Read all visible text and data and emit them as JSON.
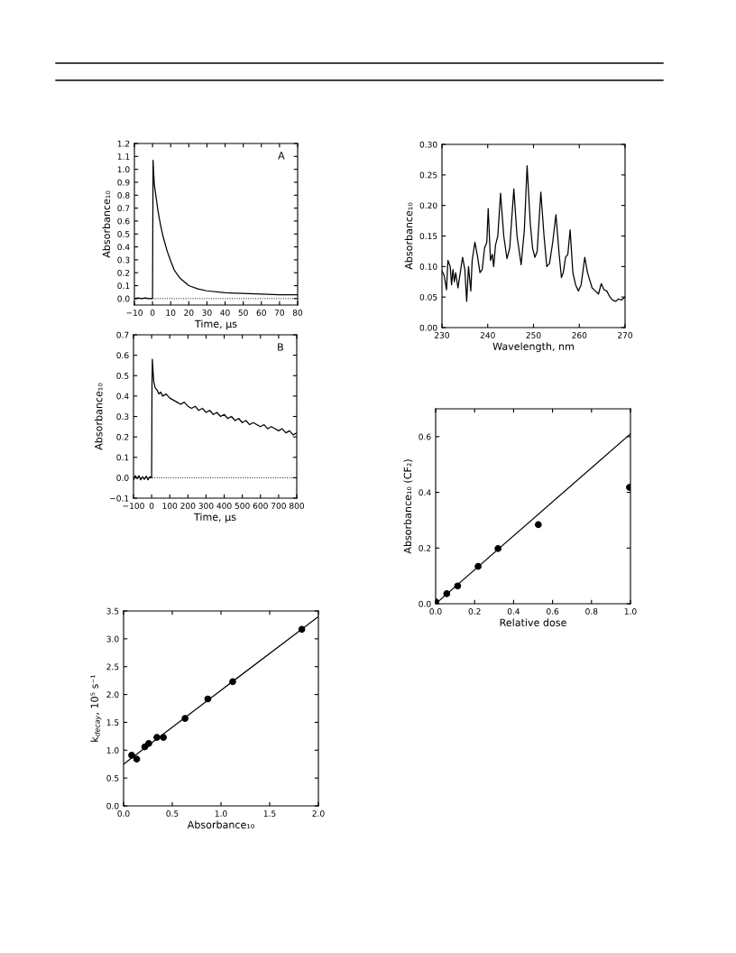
{
  "chart_data": [
    {
      "type": "line",
      "xlabel": "Time, μs",
      "ylabel": "Absorbance₁₀",
      "annotations": [
        "A"
      ],
      "xlim": [
        -10,
        80
      ],
      "xticks": [
        {
          "value": -10,
          "label": "−10"
        },
        0,
        10,
        20,
        30,
        40,
        50,
        60,
        70,
        80
      ],
      "ylim": [
        -0.05,
        1.2
      ],
      "yticks": [
        {
          "value": 0,
          "label": "0.0"
        },
        0.1,
        0.2,
        0.3,
        0.4,
        0.5,
        0.6,
        0.7,
        0.8,
        0.9,
        {
          "value": 1,
          "label": "1.0"
        },
        1.1,
        1.2
      ],
      "ref_lines": [
        {
          "axis": "y",
          "value": 0,
          "line_style": "dotted",
          "color": "#000000"
        }
      ],
      "series": [
        {
          "color": "#000000",
          "x": [
            -10,
            -8,
            -6,
            -4,
            -2,
            0,
            0.3,
            0.6,
            1,
            2,
            3,
            4,
            5,
            6,
            8,
            10,
            12,
            15,
            20,
            25,
            30,
            40,
            50,
            60,
            70,
            80
          ],
          "values": [
            0.0,
            0.005,
            0.0,
            0.005,
            0.0,
            0.0,
            1.07,
            0.98,
            0.88,
            0.78,
            0.68,
            0.6,
            0.53,
            0.47,
            0.37,
            0.29,
            0.22,
            0.16,
            0.1,
            0.075,
            0.06,
            0.045,
            0.04,
            0.035,
            0.03,
            0.03
          ]
        }
      ]
    },
    {
      "type": "line",
      "xlabel": "Time, μs",
      "ylabel": "Absorbance₁₀",
      "annotations": [
        "B"
      ],
      "xlim": [
        -100,
        800
      ],
      "xticks": [
        {
          "value": -100,
          "label": "−100"
        },
        0,
        100,
        200,
        300,
        400,
        500,
        600,
        700,
        800
      ],
      "ylim": [
        -0.1,
        0.7
      ],
      "yticks": [
        {
          "value": -0.1,
          "label": "−0.1"
        },
        {
          "value": 0,
          "label": "0.0"
        },
        0.1,
        0.2,
        0.3,
        0.4,
        0.5,
        0.6,
        0.7
      ],
      "ref_lines": [
        {
          "axis": "y",
          "value": 0,
          "line_style": "dotted",
          "color": "#000000"
        }
      ],
      "series": [
        {
          "color": "#000000",
          "x": [
            -100,
            -90,
            -80,
            -70,
            -60,
            -50,
            -40,
            -30,
            -20,
            -10,
            0,
            2,
            4,
            8,
            12,
            20,
            30,
            40,
            50,
            60,
            80,
            100,
            120,
            140,
            160,
            180,
            200,
            220,
            240,
            260,
            280,
            300,
            320,
            340,
            360,
            380,
            400,
            420,
            440,
            460,
            480,
            500,
            520,
            540,
            560,
            580,
            600,
            620,
            640,
            660,
            680,
            700,
            720,
            740,
            760,
            780,
            800
          ],
          "values": [
            -0.01,
            0.01,
            -0.005,
            0.01,
            -0.01,
            0.005,
            -0.008,
            0.008,
            -0.01,
            0.005,
            0.0,
            0.45,
            0.58,
            0.52,
            0.47,
            0.44,
            0.43,
            0.41,
            0.42,
            0.4,
            0.41,
            0.39,
            0.38,
            0.37,
            0.36,
            0.37,
            0.35,
            0.34,
            0.35,
            0.33,
            0.34,
            0.32,
            0.33,
            0.31,
            0.32,
            0.3,
            0.31,
            0.29,
            0.3,
            0.28,
            0.29,
            0.27,
            0.28,
            0.26,
            0.27,
            0.26,
            0.25,
            0.26,
            0.24,
            0.25,
            0.24,
            0.23,
            0.24,
            0.22,
            0.23,
            0.21,
            0.22
          ]
        }
      ]
    },
    {
      "type": "line",
      "xlabel": "Wavelength, nm",
      "ylabel": "Absorbance₁₀",
      "xlim": [
        230,
        270
      ],
      "xticks": [
        230,
        240,
        250,
        260,
        270
      ],
      "ylim": [
        0,
        0.3
      ],
      "yticks": [
        {
          "value": 0,
          "label": "0.00"
        },
        0.05,
        {
          "value": 0.1,
          "label": "0.10"
        },
        0.15,
        {
          "value": 0.2,
          "label": "0.20"
        },
        0.25,
        {
          "value": 0.3,
          "label": "0.30"
        }
      ],
      "series": [
        {
          "color": "#000000",
          "x": [
            230,
            230.5,
            231,
            231.3,
            231.8,
            232.1,
            232.4,
            232.7,
            233,
            233.5,
            234,
            234.5,
            235,
            235.4,
            235.8,
            236.3,
            236.6,
            237.2,
            237.8,
            238.3,
            238.8,
            239.3,
            239.8,
            240.1,
            240.6,
            241,
            241.3,
            241.7,
            242.2,
            242.8,
            243.5,
            244.2,
            244.8,
            245.7,
            246.4,
            247.3,
            248,
            248.6,
            249.3,
            249.8,
            250.3,
            250.8,
            251.6,
            252.3,
            252.9,
            253.5,
            254.2,
            254.9,
            255.6,
            256.1,
            256.5,
            257,
            257.5,
            258,
            258.6,
            259.2,
            259.8,
            260.4,
            261.2,
            261.8,
            262.2,
            262.8,
            263.5,
            264.2,
            264.8,
            265.4,
            266,
            266.7,
            267.3,
            268,
            268.6,
            269.2,
            270
          ],
          "values": [
            0.093,
            0.085,
            0.062,
            0.11,
            0.1,
            0.07,
            0.095,
            0.075,
            0.09,
            0.065,
            0.09,
            0.115,
            0.095,
            0.043,
            0.1,
            0.06,
            0.11,
            0.14,
            0.115,
            0.09,
            0.095,
            0.13,
            0.14,
            0.195,
            0.11,
            0.12,
            0.1,
            0.135,
            0.15,
            0.22,
            0.15,
            0.113,
            0.13,
            0.227,
            0.15,
            0.103,
            0.16,
            0.265,
            0.17,
            0.13,
            0.115,
            0.125,
            0.222,
            0.15,
            0.1,
            0.105,
            0.14,
            0.185,
            0.12,
            0.082,
            0.09,
            0.115,
            0.12,
            0.16,
            0.09,
            0.07,
            0.06,
            0.07,
            0.115,
            0.09,
            0.08,
            0.065,
            0.06,
            0.055,
            0.072,
            0.062,
            0.06,
            0.05,
            0.045,
            0.043,
            0.047,
            0.045,
            0.05
          ]
        }
      ]
    },
    {
      "type": "scatter",
      "xlabel": "Relative dose",
      "ylabel": "Absorbance₁₀ (CF₂)",
      "xlim": [
        0,
        1
      ],
      "xticks": [
        {
          "value": 0,
          "label": "0.0"
        },
        0.2,
        0.4,
        0.6,
        0.8,
        {
          "value": 1,
          "label": "1.0"
        }
      ],
      "ylim": [
        0,
        0.7
      ],
      "yticks": [
        {
          "value": 0,
          "label": "0.0"
        },
        0.2,
        0.4,
        0.6
      ],
      "series": [
        {
          "marker": "circle",
          "color": "#000000",
          "x": [
            0.0,
            0.057,
            0.113,
            0.218,
            0.32
          ],
          "values": [
            0.007,
            0.036,
            0.064,
            0.134,
            0.198
          ]
        },
        {
          "marker": "circle",
          "color": "#000000",
          "x": [
            0.527,
            0.995
          ],
          "values": [
            0.284,
            0.418
          ]
        },
        {
          "type": "line",
          "marker": "none",
          "color": "#000000",
          "x": [
            0,
            1
          ],
          "values": [
            0,
            0.61
          ]
        }
      ]
    },
    {
      "type": "scatter",
      "xlabel": "Absorbance₁₀",
      "ylabel": "k$_{decay}$, 10⁵ s⁻¹",
      "xlim": [
        0,
        2
      ],
      "xticks": [
        {
          "value": 0,
          "label": "0.0"
        },
        0.5,
        {
          "value": 1,
          "label": "1.0"
        },
        1.5,
        {
          "value": 2,
          "label": "2.0"
        }
      ],
      "ylim": [
        0,
        3.5
      ],
      "yticks": [
        {
          "value": 0,
          "label": "0.0"
        },
        0.5,
        {
          "value": 1,
          "label": "1.0"
        },
        1.5,
        {
          "value": 2,
          "label": "2.0"
        },
        2.5,
        {
          "value": 3,
          "label": "3.0"
        },
        3.5
      ],
      "series": [
        {
          "marker": "circle",
          "color": "#000000",
          "x": [
            0.083,
            0.135,
            0.218,
            0.258,
            0.342,
            0.409,
            0.631,
            0.865,
            1.12,
            1.83
          ],
          "values": [
            0.91,
            0.84,
            1.06,
            1.12,
            1.23,
            1.23,
            1.57,
            1.92,
            2.23,
            3.17
          ]
        },
        {
          "type": "line",
          "marker": "none",
          "color": "#000000",
          "x": [
            0,
            2
          ],
          "values": [
            0.75,
            3.4
          ]
        }
      ]
    }
  ]
}
